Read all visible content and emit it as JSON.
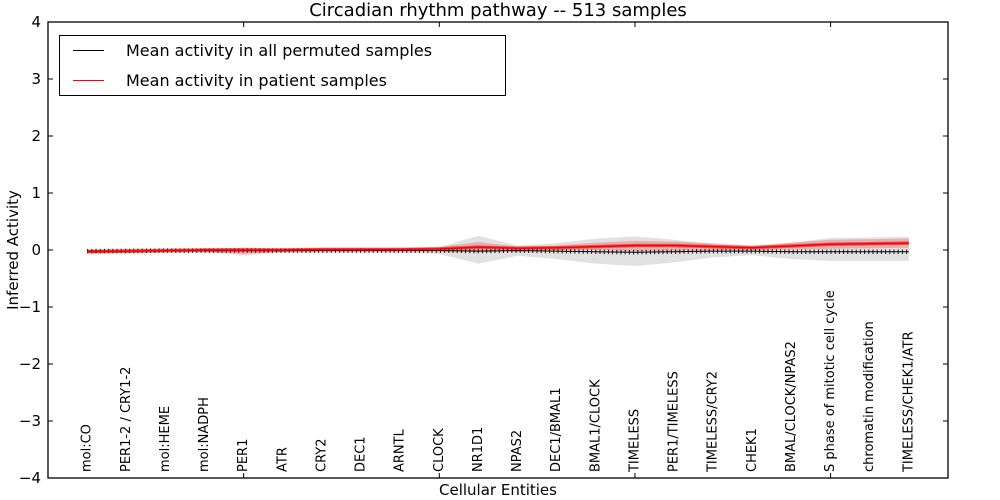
{
  "chart_data": {
    "type": "line",
    "title": "Circadian rhythm pathway -- 513 samples",
    "xlabel": "Cellular Entities",
    "ylabel": "Inferred Activity",
    "xlim": [
      0,
      23
    ],
    "ylim": [
      -4,
      4
    ],
    "yticks": [
      -4,
      -3,
      -2,
      -1,
      0,
      1,
      2,
      3,
      4
    ],
    "ytick_labels": [
      "−4",
      "−3",
      "−2",
      "−1",
      "0",
      "1",
      "2",
      "3",
      "4"
    ],
    "x_major_tick_units": [
      0,
      5,
      10,
      15,
      20
    ],
    "grid": false,
    "legend_position": "upper left",
    "categories": [
      "mol:CO",
      "PER1-2 / CRY1-2",
      "mol:HEME",
      "mol:NADPH",
      "PER1",
      "ATR",
      "CRY2",
      "DEC1",
      "ARNTL",
      "CLOCK",
      "NR1D1",
      "NPAS2",
      "DEC1/BMAL1",
      "BMAL1/CLOCK",
      "TIMELESS",
      "PER1/TIMELESS",
      "TIMELESS/CRY2",
      "CHEK1",
      "BMAL/CLOCK/NPAS2",
      "S phase of mitotic cell cycle",
      "chromatin modification",
      "TIMELESS/CHEK1/ATR"
    ],
    "series": [
      {
        "name": "Mean activity in all permuted samples",
        "color": "#000000",
        "line_style": "solid with dense tick markers",
        "values": [
          -0.02,
          -0.02,
          -0.01,
          -0.01,
          -0.01,
          -0.01,
          -0.01,
          -0.01,
          -0.01,
          -0.01,
          -0.02,
          -0.01,
          -0.02,
          -0.03,
          -0.04,
          -0.03,
          -0.02,
          -0.02,
          -0.03,
          -0.03,
          -0.03,
          -0.03
        ],
        "band_upper": [
          0.02,
          0.03,
          0.03,
          0.03,
          0.04,
          0.03,
          0.03,
          0.03,
          0.03,
          0.05,
          0.25,
          0.08,
          0.12,
          0.2,
          0.24,
          0.18,
          0.1,
          0.06,
          0.13,
          0.21,
          0.22,
          0.23
        ],
        "band_lower": [
          -0.06,
          -0.06,
          -0.05,
          -0.05,
          -0.06,
          -0.05,
          -0.05,
          -0.05,
          -0.05,
          -0.07,
          -0.24,
          -0.1,
          -0.16,
          -0.24,
          -0.28,
          -0.22,
          -0.13,
          -0.09,
          -0.16,
          -0.19,
          -0.19,
          -0.19
        ],
        "band_color": "#aaaaaa",
        "band_opacity": 0.35
      },
      {
        "name": "Mean activity in patient samples",
        "color": "#ff0000",
        "line_style": "solid",
        "values": [
          -0.03,
          -0.02,
          -0.01,
          0.0,
          0.0,
          0.0,
          0.01,
          0.01,
          0.01,
          0.02,
          0.05,
          0.03,
          0.04,
          0.06,
          0.08,
          0.08,
          0.06,
          0.04,
          0.07,
          0.1,
          0.11,
          0.12
        ],
        "band_upper": [
          0.0,
          0.01,
          0.01,
          0.02,
          0.04,
          0.02,
          0.03,
          0.03,
          0.03,
          0.05,
          0.14,
          0.06,
          0.08,
          0.13,
          0.16,
          0.15,
          0.12,
          0.08,
          0.13,
          0.18,
          0.19,
          0.2
        ],
        "band_lower": [
          -0.06,
          -0.05,
          -0.04,
          -0.03,
          -0.09,
          -0.03,
          -0.02,
          -0.01,
          -0.01,
          -0.02,
          -0.04,
          -0.01,
          0.0,
          0.0,
          -0.02,
          -0.02,
          0.0,
          0.0,
          0.01,
          0.02,
          0.03,
          0.04
        ],
        "band_color": "#ff0000",
        "band_opacity": 0.22
      }
    ]
  }
}
